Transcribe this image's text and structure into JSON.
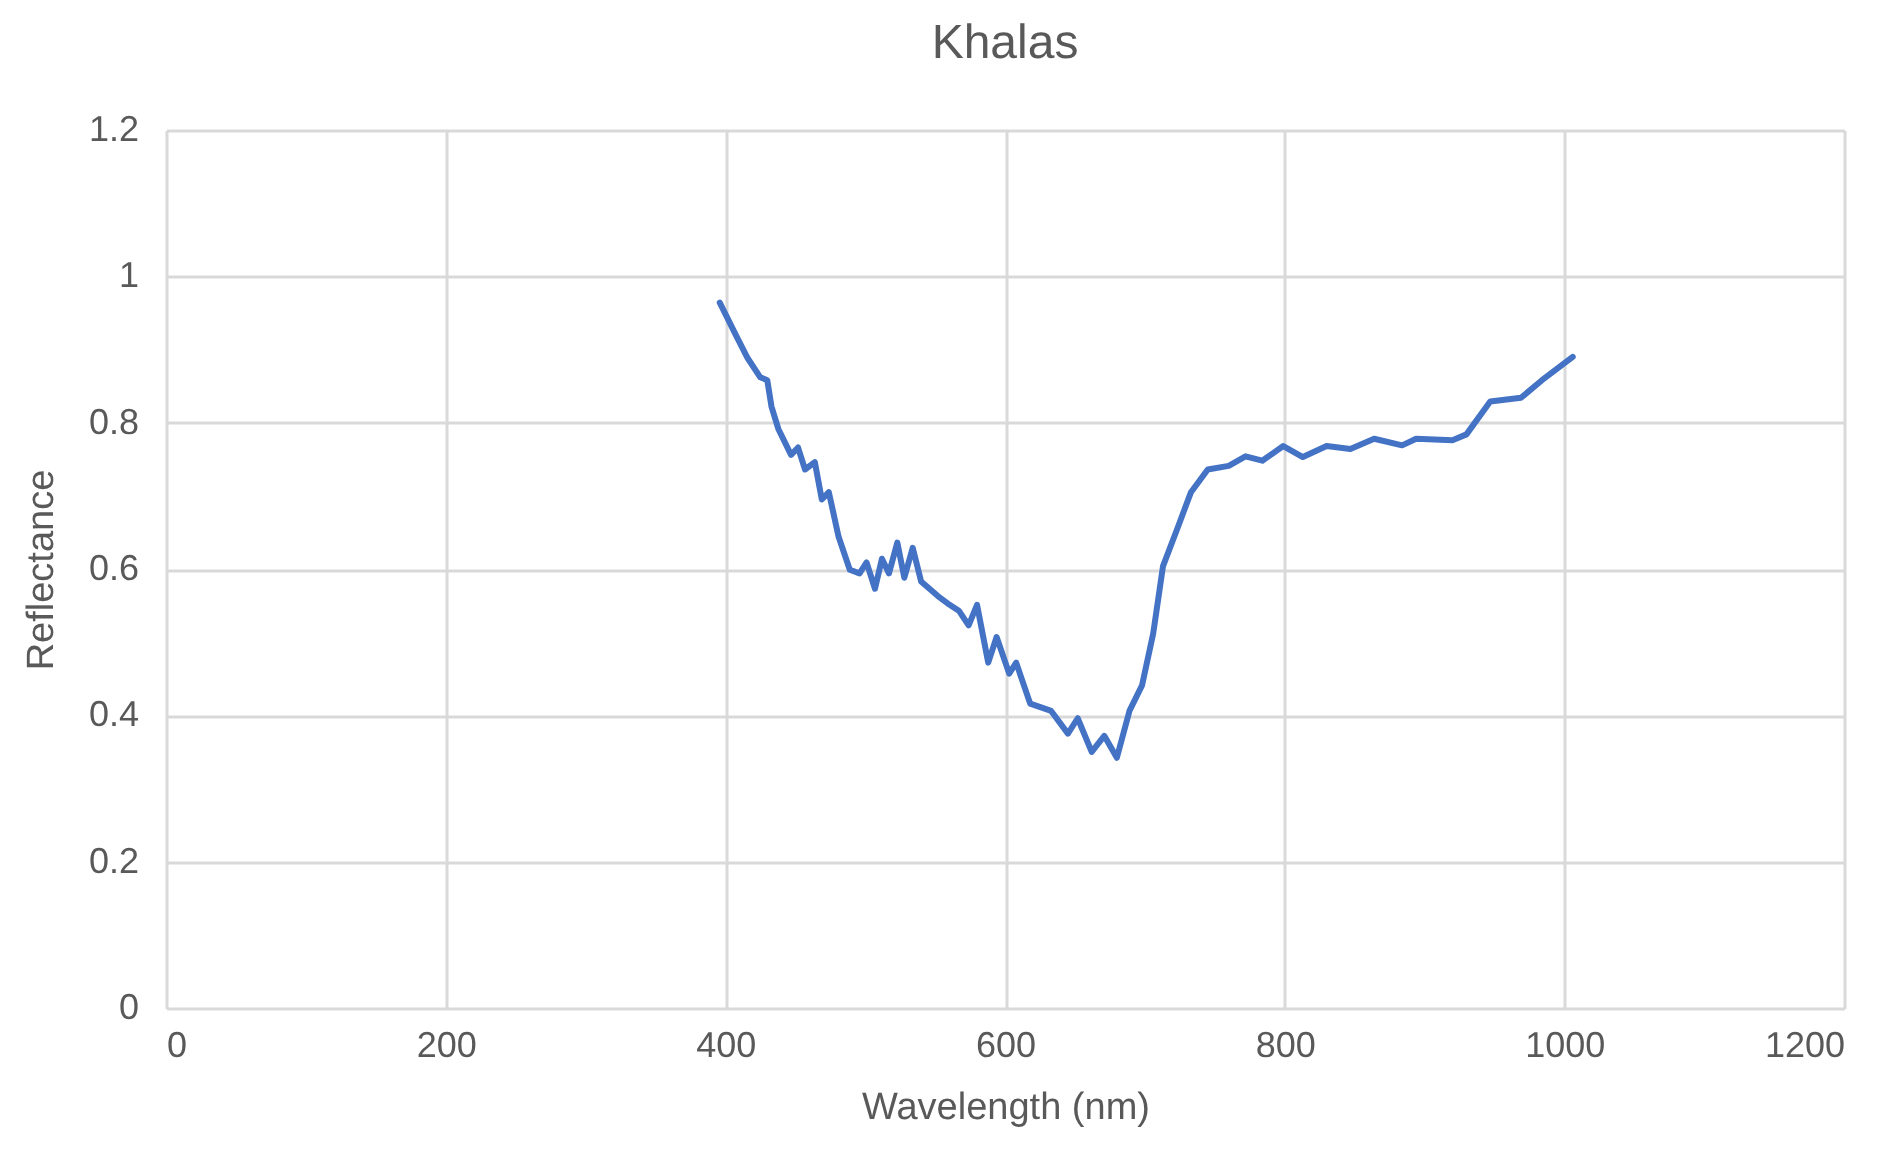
{
  "chart_data": {
    "type": "line",
    "title": "Khalas",
    "xlabel": "Wavelength (nm)",
    "ylabel": "Reflectance",
    "x": [
      396,
      408,
      416,
      425,
      430,
      433,
      438,
      447,
      452,
      457,
      464,
      469,
      474,
      481,
      489,
      496,
      501,
      507,
      512,
      517,
      523,
      528,
      534,
      540,
      552,
      559,
      567,
      574,
      580,
      588,
      594,
      603,
      608,
      618,
      633,
      645,
      652,
      662,
      671,
      680,
      689,
      698,
      706,
      713,
      723,
      733,
      745,
      760,
      772,
      784,
      799,
      813,
      830,
      847,
      864,
      884,
      894,
      920,
      930,
      947,
      969,
      984,
      1006
    ],
    "series": [
      {
        "color": "#4472c4",
        "values": [
          0.964,
          0.918,
          0.888,
          0.862,
          0.858,
          0.822,
          0.791,
          0.756,
          0.766,
          0.736,
          0.746,
          0.695,
          0.705,
          0.644,
          0.599,
          0.594,
          0.609,
          0.573,
          0.614,
          0.594,
          0.636,
          0.588,
          0.629,
          0.583,
          0.563,
          0.553,
          0.543,
          0.523,
          0.551,
          0.472,
          0.507,
          0.457,
          0.472,
          0.416,
          0.406,
          0.375,
          0.396,
          0.35,
          0.372,
          0.342,
          0.406,
          0.441,
          0.512,
          0.604,
          0.654,
          0.705,
          0.736,
          0.741,
          0.754,
          0.748,
          0.768,
          0.753,
          0.768,
          0.764,
          0.778,
          0.769,
          0.778,
          0.776,
          0.784,
          0.829,
          0.834,
          0.858,
          0.89
        ]
      }
    ],
    "xlim": [
      0,
      1200
    ],
    "xticks": [
      0,
      200,
      400,
      600,
      800,
      1000,
      1200
    ],
    "ylim": [
      0,
      1.2
    ],
    "yticks": [
      0,
      0.2,
      0.4,
      0.6,
      0.8,
      1,
      1.2
    ],
    "grid": true,
    "marker": "none",
    "line_style": "solid"
  }
}
